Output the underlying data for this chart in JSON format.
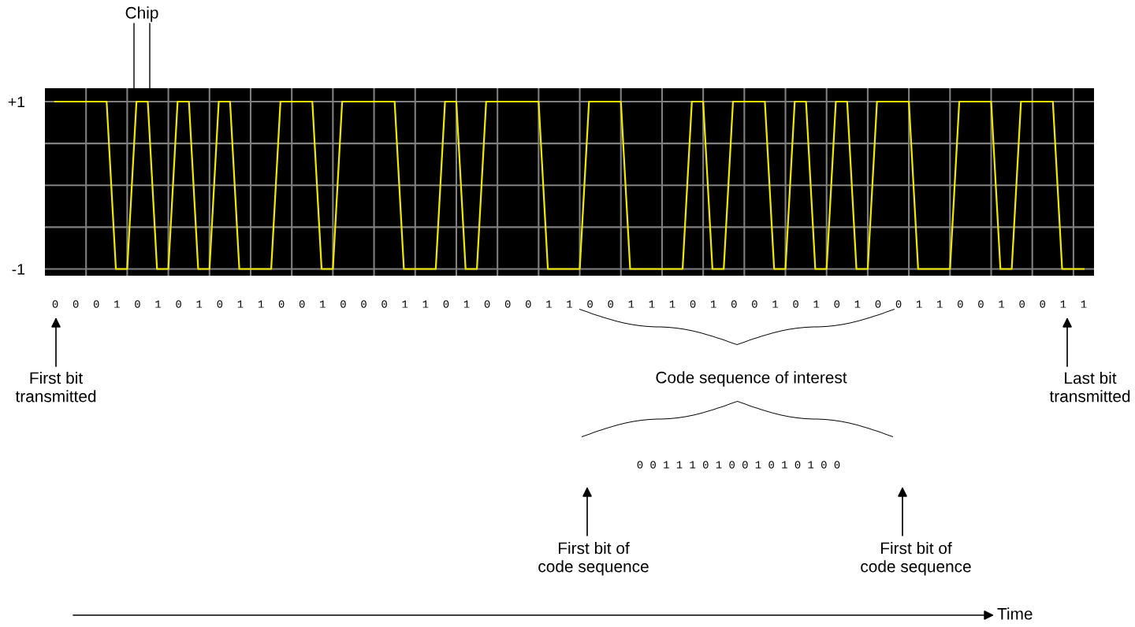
{
  "chart_data": {
    "type": "step",
    "categories": [
      "0",
      "0",
      "0",
      "1",
      "0",
      "1",
      "0",
      "1",
      "0",
      "1",
      "1",
      "0",
      "0",
      "1",
      "0",
      "0",
      "0",
      "1",
      "1",
      "0",
      "1",
      "0",
      "0",
      "0",
      "1",
      "1",
      "0",
      "0",
      "1",
      "1",
      "1",
      "0",
      "1",
      "0",
      "0",
      "1",
      "0",
      "1",
      "0",
      "1",
      "0",
      "0",
      "1",
      "1",
      "0",
      "0",
      "1",
      "0",
      "0",
      "1",
      "1"
    ],
    "series": [
      {
        "color": "#f0e800",
        "values": [
          1,
          1,
          1,
          -1,
          1,
          -1,
          1,
          -1,
          1,
          -1,
          -1,
          1,
          1,
          -1,
          1,
          1,
          1,
          -1,
          -1,
          1,
          -1,
          1,
          1,
          1,
          -1,
          -1,
          1,
          1,
          -1,
          -1,
          -1,
          1,
          -1,
          1,
          1,
          -1,
          1,
          -1,
          1,
          -1,
          1,
          1,
          -1,
          -1,
          1,
          1,
          -1,
          1,
          1,
          -1,
          -1
        ]
      }
    ],
    "ylim": [
      -1.08,
      1.16
    ],
    "yticks": [
      {
        "value": 1,
        "label": "+1"
      },
      {
        "value": -1,
        "label": "-1"
      }
    ],
    "grid": true,
    "annotations": [
      "Chip",
      "First bit\ntransmitted",
      "Last bit\ntransmitted",
      "Code sequence of interest",
      "0 0 1 1 1 0 1 0 0 1 0 1 0 1 0 0",
      "First bit of\ncode sequence",
      "First bit of\ncode sequence",
      "Time"
    ]
  }
}
